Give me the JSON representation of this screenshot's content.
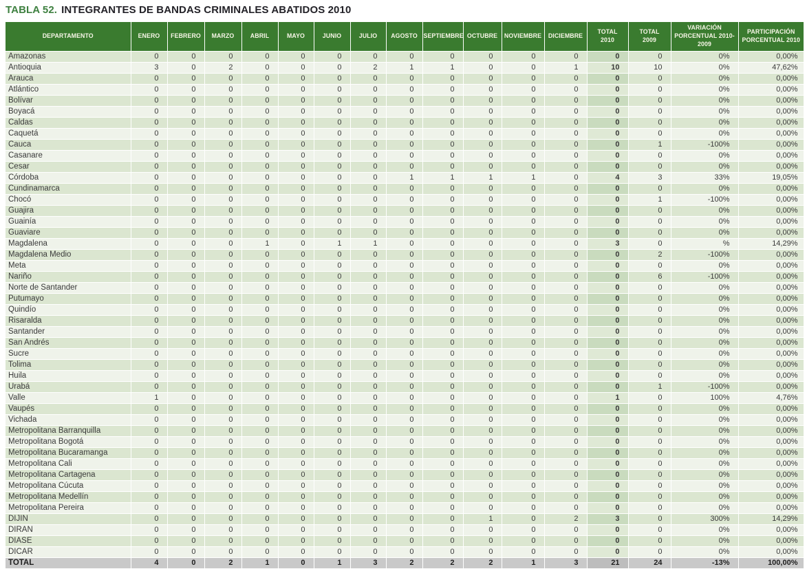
{
  "title": {
    "label": "TABLA 52.",
    "text": "INTEGRANTES DE BANDAS CRIMINALES ABATIDOS 2010"
  },
  "colors": {
    "header_bg": "#3a7b2f",
    "header_text": "#f7f6e7",
    "title_accent": "#3e8040",
    "row_stripe": "#dbe6d0",
    "row_light": "#eff3ea",
    "total_col_stripe": "#c9dbbe",
    "total_col_light": "#dfe9d5",
    "total_row_bg": "#c9c9c9"
  },
  "table": {
    "columns": [
      "DEPARTAMENTO",
      "ENERO",
      "FEBRERO",
      "MARZO",
      "ABRIL",
      "MAYO",
      "JUNIO",
      "JULIO",
      "AGOSTO",
      "SEPTIEMBRE",
      "OCTUBRE",
      "NOVIEMBRE",
      "DICIEMBRE",
      "TOTAL\n2010",
      "TOTAL\n2009",
      "VARIACIÓN\nPORCENTUAL 2010-2009",
      "PARTICIPACIÓN\nPORCENTUAL 2010"
    ],
    "rows": [
      {
        "name": "Amazonas",
        "months": [
          0,
          0,
          0,
          0,
          0,
          0,
          0,
          0,
          0,
          0,
          0,
          0
        ],
        "total2010": 0,
        "total2009": 0,
        "variacion": "0%",
        "participacion": "0,00%"
      },
      {
        "name": "Antioquia",
        "months": [
          3,
          0,
          2,
          0,
          0,
          0,
          2,
          1,
          1,
          0,
          0,
          1
        ],
        "total2010": 10,
        "total2009": 10,
        "variacion": "0%",
        "participacion": "47,62%"
      },
      {
        "name": "Arauca",
        "months": [
          0,
          0,
          0,
          0,
          0,
          0,
          0,
          0,
          0,
          0,
          0,
          0
        ],
        "total2010": 0,
        "total2009": 0,
        "variacion": "0%",
        "participacion": "0,00%"
      },
      {
        "name": "Atlántico",
        "months": [
          0,
          0,
          0,
          0,
          0,
          0,
          0,
          0,
          0,
          0,
          0,
          0
        ],
        "total2010": 0,
        "total2009": 0,
        "variacion": "0%",
        "participacion": "0,00%"
      },
      {
        "name": "Bolívar",
        "months": [
          0,
          0,
          0,
          0,
          0,
          0,
          0,
          0,
          0,
          0,
          0,
          0
        ],
        "total2010": 0,
        "total2009": 0,
        "variacion": "0%",
        "participacion": "0,00%"
      },
      {
        "name": "Boyacá",
        "months": [
          0,
          0,
          0,
          0,
          0,
          0,
          0,
          0,
          0,
          0,
          0,
          0
        ],
        "total2010": 0,
        "total2009": 0,
        "variacion": "0%",
        "participacion": "0,00%"
      },
      {
        "name": "Caldas",
        "months": [
          0,
          0,
          0,
          0,
          0,
          0,
          0,
          0,
          0,
          0,
          0,
          0
        ],
        "total2010": 0,
        "total2009": 0,
        "variacion": "0%",
        "participacion": "0,00%"
      },
      {
        "name": "Caquetá",
        "months": [
          0,
          0,
          0,
          0,
          0,
          0,
          0,
          0,
          0,
          0,
          0,
          0
        ],
        "total2010": 0,
        "total2009": 0,
        "variacion": "0%",
        "participacion": "0,00%"
      },
      {
        "name": "Cauca",
        "months": [
          0,
          0,
          0,
          0,
          0,
          0,
          0,
          0,
          0,
          0,
          0,
          0
        ],
        "total2010": 0,
        "total2009": 1,
        "variacion": "-100%",
        "participacion": "0,00%"
      },
      {
        "name": "Casanare",
        "months": [
          0,
          0,
          0,
          0,
          0,
          0,
          0,
          0,
          0,
          0,
          0,
          0
        ],
        "total2010": 0,
        "total2009": 0,
        "variacion": "0%",
        "participacion": "0,00%"
      },
      {
        "name": "Cesar",
        "months": [
          0,
          0,
          0,
          0,
          0,
          0,
          0,
          0,
          0,
          0,
          0,
          0
        ],
        "total2010": 0,
        "total2009": 0,
        "variacion": "0%",
        "participacion": "0,00%"
      },
      {
        "name": "Córdoba",
        "months": [
          0,
          0,
          0,
          0,
          0,
          0,
          0,
          1,
          1,
          1,
          1,
          0
        ],
        "total2010": 4,
        "total2009": 3,
        "variacion": "33%",
        "participacion": "19,05%"
      },
      {
        "name": "Cundinamarca",
        "months": [
          0,
          0,
          0,
          0,
          0,
          0,
          0,
          0,
          0,
          0,
          0,
          0
        ],
        "total2010": 0,
        "total2009": 0,
        "variacion": "0%",
        "participacion": "0,00%"
      },
      {
        "name": "Chocó",
        "months": [
          0,
          0,
          0,
          0,
          0,
          0,
          0,
          0,
          0,
          0,
          0,
          0
        ],
        "total2010": 0,
        "total2009": 1,
        "variacion": "-100%",
        "participacion": "0,00%"
      },
      {
        "name": "Guajira",
        "months": [
          0,
          0,
          0,
          0,
          0,
          0,
          0,
          0,
          0,
          0,
          0,
          0
        ],
        "total2010": 0,
        "total2009": 0,
        "variacion": "0%",
        "participacion": "0,00%"
      },
      {
        "name": "Guainía",
        "months": [
          0,
          0,
          0,
          0,
          0,
          0,
          0,
          0,
          0,
          0,
          0,
          0
        ],
        "total2010": 0,
        "total2009": 0,
        "variacion": "0%",
        "participacion": "0,00%"
      },
      {
        "name": "Guaviare",
        "months": [
          0,
          0,
          0,
          0,
          0,
          0,
          0,
          0,
          0,
          0,
          0,
          0
        ],
        "total2010": 0,
        "total2009": 0,
        "variacion": "0%",
        "participacion": "0,00%"
      },
      {
        "name": "Magdalena",
        "months": [
          0,
          0,
          0,
          1,
          0,
          1,
          1,
          0,
          0,
          0,
          0,
          0
        ],
        "total2010": 3,
        "total2009": 0,
        "variacion": "%",
        "participacion": "14,29%"
      },
      {
        "name": "Magdalena Medio",
        "months": [
          0,
          0,
          0,
          0,
          0,
          0,
          0,
          0,
          0,
          0,
          0,
          0
        ],
        "total2010": 0,
        "total2009": 2,
        "variacion": "-100%",
        "participacion": "0,00%"
      },
      {
        "name": "Meta",
        "months": [
          0,
          0,
          0,
          0,
          0,
          0,
          0,
          0,
          0,
          0,
          0,
          0
        ],
        "total2010": 0,
        "total2009": 0,
        "variacion": "0%",
        "participacion": "0,00%"
      },
      {
        "name": "Nariño",
        "months": [
          0,
          0,
          0,
          0,
          0,
          0,
          0,
          0,
          0,
          0,
          0,
          0
        ],
        "total2010": 0,
        "total2009": 6,
        "variacion": "-100%",
        "participacion": "0,00%"
      },
      {
        "name": "Norte de Santander",
        "months": [
          0,
          0,
          0,
          0,
          0,
          0,
          0,
          0,
          0,
          0,
          0,
          0
        ],
        "total2010": 0,
        "total2009": 0,
        "variacion": "0%",
        "participacion": "0,00%"
      },
      {
        "name": "Putumayo",
        "months": [
          0,
          0,
          0,
          0,
          0,
          0,
          0,
          0,
          0,
          0,
          0,
          0
        ],
        "total2010": 0,
        "total2009": 0,
        "variacion": "0%",
        "participacion": "0,00%"
      },
      {
        "name": "Quindío",
        "months": [
          0,
          0,
          0,
          0,
          0,
          0,
          0,
          0,
          0,
          0,
          0,
          0
        ],
        "total2010": 0,
        "total2009": 0,
        "variacion": "0%",
        "participacion": "0,00%"
      },
      {
        "name": "Risaralda",
        "months": [
          0,
          0,
          0,
          0,
          0,
          0,
          0,
          0,
          0,
          0,
          0,
          0
        ],
        "total2010": 0,
        "total2009": 0,
        "variacion": "0%",
        "participacion": "0,00%"
      },
      {
        "name": "Santander",
        "months": [
          0,
          0,
          0,
          0,
          0,
          0,
          0,
          0,
          0,
          0,
          0,
          0
        ],
        "total2010": 0,
        "total2009": 0,
        "variacion": "0%",
        "participacion": "0,00%"
      },
      {
        "name": "San Andrés",
        "months": [
          0,
          0,
          0,
          0,
          0,
          0,
          0,
          0,
          0,
          0,
          0,
          0
        ],
        "total2010": 0,
        "total2009": 0,
        "variacion": "0%",
        "participacion": "0,00%"
      },
      {
        "name": "Sucre",
        "months": [
          0,
          0,
          0,
          0,
          0,
          0,
          0,
          0,
          0,
          0,
          0,
          0
        ],
        "total2010": 0,
        "total2009": 0,
        "variacion": "0%",
        "participacion": "0,00%"
      },
      {
        "name": "Tolima",
        "months": [
          0,
          0,
          0,
          0,
          0,
          0,
          0,
          0,
          0,
          0,
          0,
          0
        ],
        "total2010": 0,
        "total2009": 0,
        "variacion": "0%",
        "participacion": "0,00%"
      },
      {
        "name": "Huila",
        "months": [
          0,
          0,
          0,
          0,
          0,
          0,
          0,
          0,
          0,
          0,
          0,
          0
        ],
        "total2010": 0,
        "total2009": 0,
        "variacion": "0%",
        "participacion": "0,00%"
      },
      {
        "name": "Urabá",
        "months": [
          0,
          0,
          0,
          0,
          0,
          0,
          0,
          0,
          0,
          0,
          0,
          0
        ],
        "total2010": 0,
        "total2009": 1,
        "variacion": "-100%",
        "participacion": "0,00%"
      },
      {
        "name": "Valle",
        "months": [
          1,
          0,
          0,
          0,
          0,
          0,
          0,
          0,
          0,
          0,
          0,
          0
        ],
        "total2010": 1,
        "total2009": 0,
        "variacion": "100%",
        "participacion": "4,76%"
      },
      {
        "name": "Vaupés",
        "months": [
          0,
          0,
          0,
          0,
          0,
          0,
          0,
          0,
          0,
          0,
          0,
          0
        ],
        "total2010": 0,
        "total2009": 0,
        "variacion": "0%",
        "participacion": "0,00%"
      },
      {
        "name": "Vichada",
        "months": [
          0,
          0,
          0,
          0,
          0,
          0,
          0,
          0,
          0,
          0,
          0,
          0
        ],
        "total2010": 0,
        "total2009": 0,
        "variacion": "0%",
        "participacion": "0,00%"
      },
      {
        "name": "Metropolitana Barranquilla",
        "months": [
          0,
          0,
          0,
          0,
          0,
          0,
          0,
          0,
          0,
          0,
          0,
          0
        ],
        "total2010": 0,
        "total2009": 0,
        "variacion": "0%",
        "participacion": "0,00%"
      },
      {
        "name": "Metropolitana Bogotá",
        "months": [
          0,
          0,
          0,
          0,
          0,
          0,
          0,
          0,
          0,
          0,
          0,
          0
        ],
        "total2010": 0,
        "total2009": 0,
        "variacion": "0%",
        "participacion": "0,00%"
      },
      {
        "name": "Metropolitana Bucaramanga",
        "months": [
          0,
          0,
          0,
          0,
          0,
          0,
          0,
          0,
          0,
          0,
          0,
          0
        ],
        "total2010": 0,
        "total2009": 0,
        "variacion": "0%",
        "participacion": "0,00%"
      },
      {
        "name": "Metropolitana Cali",
        "months": [
          0,
          0,
          0,
          0,
          0,
          0,
          0,
          0,
          0,
          0,
          0,
          0
        ],
        "total2010": 0,
        "total2009": 0,
        "variacion": "0%",
        "participacion": "0,00%"
      },
      {
        "name": "Metropolitana Cartagena",
        "months": [
          0,
          0,
          0,
          0,
          0,
          0,
          0,
          0,
          0,
          0,
          0,
          0
        ],
        "total2010": 0,
        "total2009": 0,
        "variacion": "0%",
        "participacion": "0,00%"
      },
      {
        "name": "Metropolitana Cúcuta",
        "months": [
          0,
          0,
          0,
          0,
          0,
          0,
          0,
          0,
          0,
          0,
          0,
          0
        ],
        "total2010": 0,
        "total2009": 0,
        "variacion": "0%",
        "participacion": "0,00%"
      },
      {
        "name": "Metropolitana Medellín",
        "months": [
          0,
          0,
          0,
          0,
          0,
          0,
          0,
          0,
          0,
          0,
          0,
          0
        ],
        "total2010": 0,
        "total2009": 0,
        "variacion": "0%",
        "participacion": "0,00%"
      },
      {
        "name": "Metropolitana Pereira",
        "months": [
          0,
          0,
          0,
          0,
          0,
          0,
          0,
          0,
          0,
          0,
          0,
          0
        ],
        "total2010": 0,
        "total2009": 0,
        "variacion": "0%",
        "participacion": "0,00%"
      },
      {
        "name": "DIJIN",
        "months": [
          0,
          0,
          0,
          0,
          0,
          0,
          0,
          0,
          0,
          1,
          0,
          2
        ],
        "total2010": 3,
        "total2009": 0,
        "variacion": "300%",
        "participacion": "14,29%"
      },
      {
        "name": "DIRAN",
        "months": [
          0,
          0,
          0,
          0,
          0,
          0,
          0,
          0,
          0,
          0,
          0,
          0
        ],
        "total2010": 0,
        "total2009": 0,
        "variacion": "0%",
        "participacion": "0,00%"
      },
      {
        "name": "DIASE",
        "months": [
          0,
          0,
          0,
          0,
          0,
          0,
          0,
          0,
          0,
          0,
          0,
          0
        ],
        "total2010": 0,
        "total2009": 0,
        "variacion": "0%",
        "participacion": "0,00%"
      },
      {
        "name": "DICAR",
        "months": [
          0,
          0,
          0,
          0,
          0,
          0,
          0,
          0,
          0,
          0,
          0,
          0
        ],
        "total2010": 0,
        "total2009": 0,
        "variacion": "0%",
        "participacion": "0,00%"
      }
    ],
    "total_row": {
      "name": "TOTAL",
      "months": [
        4,
        0,
        2,
        1,
        0,
        1,
        3,
        2,
        2,
        2,
        1,
        3
      ],
      "total2010": 21,
      "total2009": 24,
      "variacion": "-13%",
      "participacion": "100,00%"
    }
  }
}
